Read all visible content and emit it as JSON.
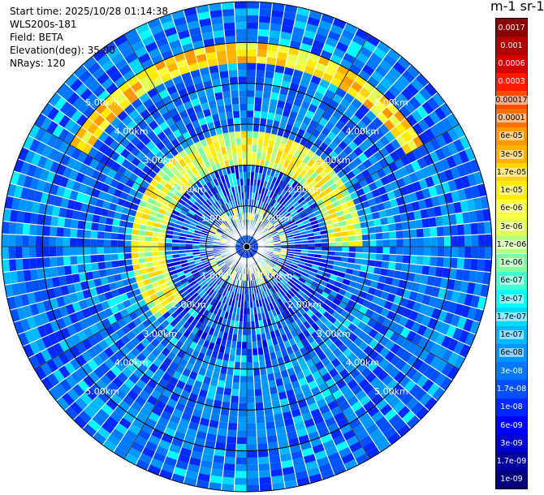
{
  "header": {
    "start_time": "Start time: 2025/10/28 01:14:38",
    "instrument": "WLS200s-181",
    "field": "Field: BETA",
    "elevation": "Elevation(deg): 35.00",
    "nrays": "NRays: 120"
  },
  "colorbar": {
    "title": "m-1 sr-1",
    "labels": [
      "0.0017",
      "0.001",
      "0.0006",
      "0.0003",
      "0.00017",
      "0.0001",
      "6e-05",
      "3e-05",
      "1.7e-05",
      "1e-05",
      "6e-06",
      "3e-06",
      "1.7e-06",
      "1e-06",
      "6e-07",
      "3e-07",
      "1.7e-07",
      "1e-07",
      "6e-08",
      "3e-08",
      "1.7e-08",
      "1e-08",
      "6e-09",
      "3e-09",
      "1.7e-09",
      "1e-09"
    ],
    "colors": [
      "#8b0000",
      "#b00000",
      "#d70000",
      "#ff1a00",
      "#ff4d00",
      "#ff7000",
      "#ff9900",
      "#ffb300",
      "#ffd400",
      "#ffee00",
      "#ffff40",
      "#e6ff55",
      "#b8ff80",
      "#80ffa0",
      "#40ffd0",
      "#00ffff",
      "#00d8ff",
      "#00b8ff",
      "#0098ff",
      "#0078ff",
      "#0050ff",
      "#0028ff",
      "#0000ff",
      "#0000d0",
      "#0000a0",
      "#00007a"
    ]
  },
  "chart_data": {
    "type": "heatmap",
    "projection": "polar (PPI scan)",
    "field": "BETA",
    "elevation_deg": 35.0,
    "n_rays": 120,
    "range_rings_km": [
      1,
      2,
      3,
      4,
      5
    ],
    "ring_labels": [
      "1.00km",
      "2.00km",
      "3.00km",
      "4.00km",
      "5.00km"
    ],
    "max_range_km": 6.0,
    "color_scale": "log",
    "value_range": [
      1e-09,
      0.0017
    ],
    "dominant_level": "~1e-07",
    "features": [
      {
        "range_km": [
          4.5,
          5.0
        ],
        "azimuth_deg": [
          300,
          60
        ],
        "level": "~3e-05"
      },
      {
        "range_km": [
          2.0,
          2.8
        ],
        "azimuth_deg": [
          230,
          90
        ],
        "level": "~1e-05"
      },
      {
        "range_km": [
          0.5,
          1.0
        ],
        "azimuth_deg": [
          0,
          360
        ],
        "level": "~3e-06"
      }
    ]
  }
}
